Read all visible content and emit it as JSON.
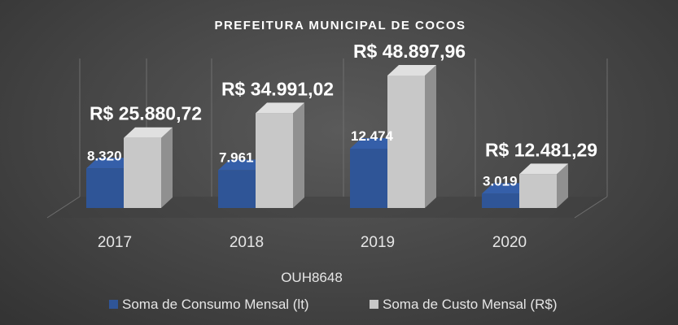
{
  "chart_data": {
    "type": "bar",
    "title": "PREFEITURA  MUNICIPAL DE COCOS",
    "xlabel": "OUH8648",
    "categories": [
      "2017",
      "2018",
      "2019",
      "2020"
    ],
    "series": [
      {
        "name": "Soma de Consumo Mensal (lt)",
        "values": [
          8320,
          7961,
          12474,
          3019
        ],
        "labels": [
          "8.320",
          "7.961",
          "12.474",
          "3.019"
        ],
        "color": "#2f5597"
      },
      {
        "name": "Soma de Custo Mensal (R$)",
        "values": [
          25880.72,
          34991.02,
          48897.96,
          12481.29
        ],
        "labels": [
          "R$ 25.880,72",
          "R$ 34.991,02",
          "R$ 48.897,96",
          "R$ 12.481,29"
        ],
        "color": "#c8c8c8"
      }
    ],
    "legend_position": "bottom",
    "grid": true
  }
}
